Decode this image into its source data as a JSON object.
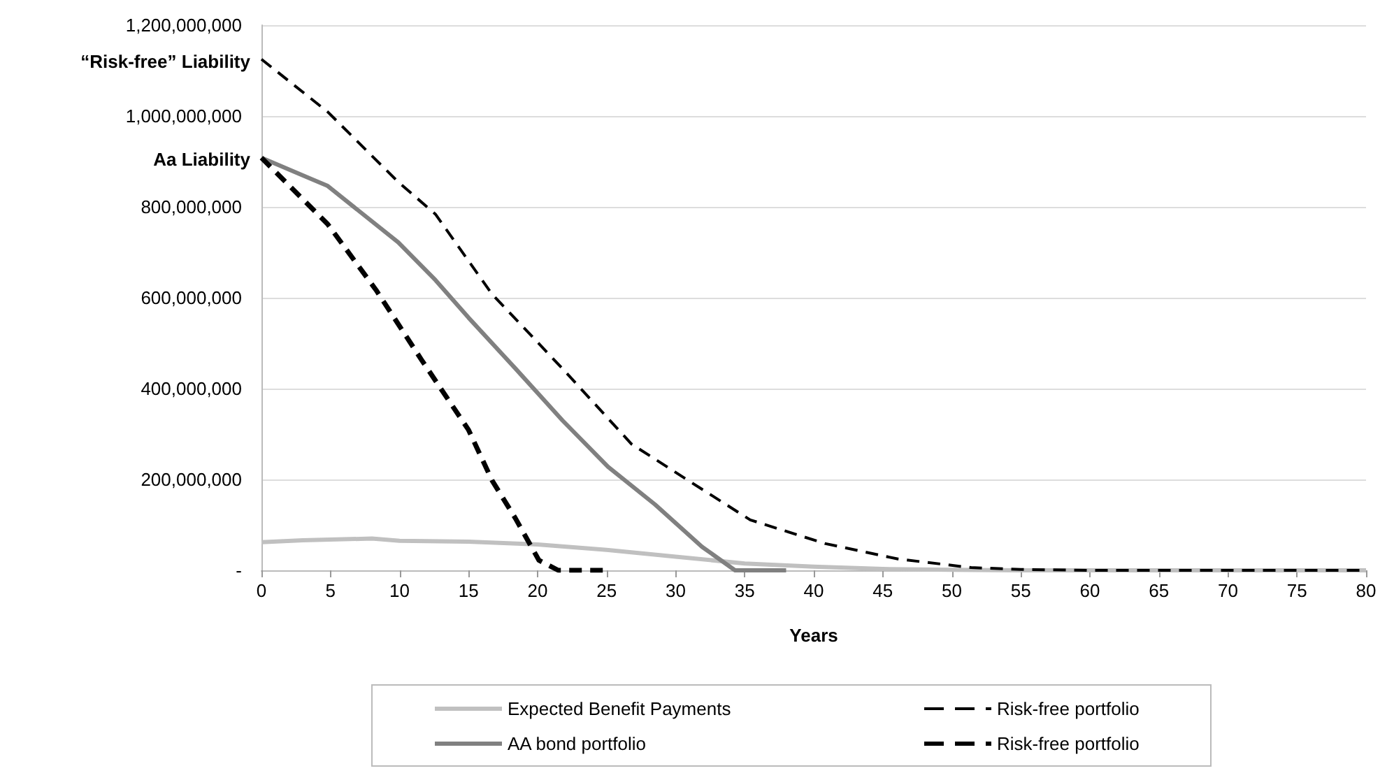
{
  "chart_data": {
    "type": "line",
    "xlabel": "Years",
    "legend": "bottom",
    "grid": "y",
    "marker": "none",
    "xlim": [
      0,
      80
    ],
    "xticks": [
      0,
      5,
      10,
      15,
      20,
      25,
      30,
      35,
      40,
      45,
      50,
      55,
      60,
      65,
      70,
      75,
      80
    ],
    "ylim": [
      0,
      1200000000
    ],
    "yticks": [
      {
        "value": 0,
        "label": "-"
      },
      {
        "value": 200000000,
        "label": "200,000,000"
      },
      {
        "value": 400000000,
        "label": "400,000,000"
      },
      {
        "value": 600000000,
        "label": "600,000,000"
      },
      {
        "value": 800000000,
        "label": "800,000,000"
      },
      {
        "value": 1000000000,
        "label": "1,000,000,000"
      },
      {
        "value": 1200000000,
        "label": "1,200,000,000"
      }
    ],
    "annotations": [
      {
        "text": "“Risk-free” Liability",
        "x": 0,
        "y": 1120000000
      },
      {
        "text": "Aa Liability",
        "x": 0,
        "y": 905000000
      }
    ],
    "series": [
      {
        "name": "Expected Benefit Payments",
        "color": "#c0c0c0",
        "line_style": "solid",
        "x": [
          0,
          3,
          8,
          10,
          15,
          20,
          25,
          30,
          35,
          40,
          45,
          50,
          55,
          60,
          65,
          70,
          75,
          80
        ],
        "values": [
          62000000,
          66000000,
          70000000,
          65000000,
          63000000,
          57000000,
          45000000,
          30000000,
          15000000,
          8000000,
          3000000,
          1000000,
          0,
          0,
          0,
          0,
          0,
          0
        ]
      },
      {
        "name": "Risk-free portfolio",
        "color": "#000000",
        "line_style": "dashed",
        "x": [
          0,
          4.8,
          9.9,
          12.6,
          16.7,
          21.8,
          26.8,
          30.9,
          35.4,
          40.8,
          46.1,
          51.4,
          55,
          60,
          65,
          70,
          75,
          80
        ],
        "values": [
          1125000000,
          1009000000,
          855000000,
          784000000,
          608000000,
          444000000,
          278000000,
          198000000,
          111000000,
          59000000,
          25000000,
          6000000,
          2000000,
          0,
          0,
          0,
          0,
          0
        ]
      },
      {
        "name": "AA bond portfolio",
        "color": "#808080",
        "line_style": "solid",
        "x": [
          0,
          4.8,
          9.9,
          12.6,
          15,
          18.4,
          21.8,
          25.1,
          28.5,
          31.9,
          34.3,
          38
        ],
        "values": [
          908000000,
          846000000,
          722000000,
          639000000,
          556000000,
          444000000,
          330000000,
          228000000,
          145000000,
          52000000,
          0,
          0
        ]
      },
      {
        "name": "Risk-free portfolio",
        "color": "#000000",
        "line_style": "dashed",
        "x": [
          0,
          4.8,
          8.3,
          11.6,
          15,
          16.7,
          18.4,
          20.1,
          21.5,
          25
        ],
        "values": [
          908000000,
          762000000,
          617000000,
          463000000,
          309000000,
          198000000,
          114000000,
          22000000,
          0,
          0
        ]
      }
    ]
  }
}
